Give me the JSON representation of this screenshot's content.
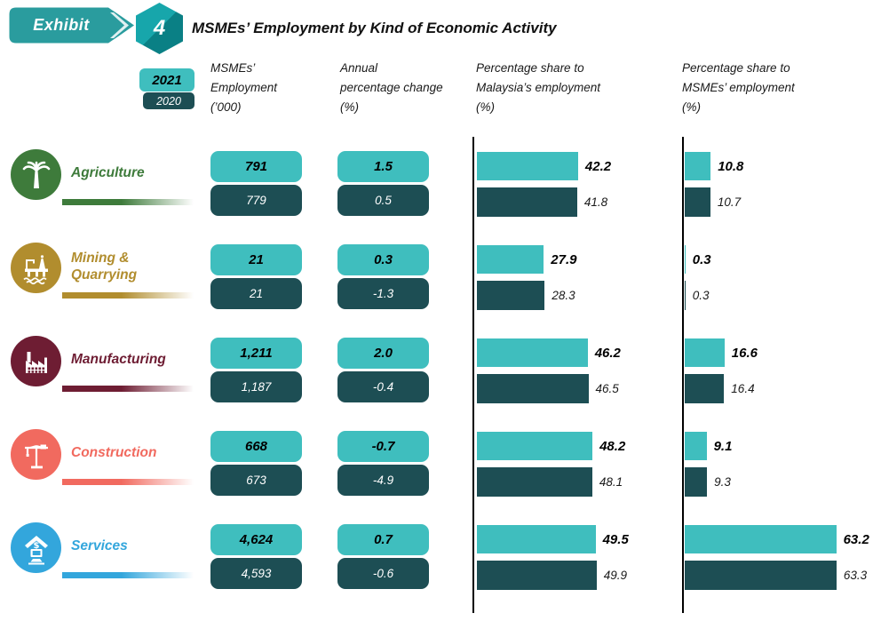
{
  "header": {
    "badge_label": "Exhibit",
    "exhibit_number": "4",
    "title": "MSMEs’ Employment by Kind of Economic Activity"
  },
  "legend": {
    "year_2021": "2021",
    "year_2020": "2020"
  },
  "columns": {
    "employment": "MSMEs’\nEmployment\n(’000)",
    "annual_change": "Annual\npercentage change\n(%)",
    "malaysia_share": "Percentage share to\nMalaysia’s employment\n(%)",
    "msme_share": "Percentage share to\nMSMEs’ employment\n(%)"
  },
  "colors": {
    "teal_2021": "#3FBEBE",
    "dark_2020": "#1D4E54",
    "badge": "#2A9C9E"
  },
  "rows": [
    {
      "name": "Agriculture",
      "icon": "palm-tree-icon",
      "color": "#3E7B3B",
      "employment": {
        "y2021": "791",
        "y2020": "779"
      },
      "change": {
        "y2021": "1.5",
        "y2020": "0.5"
      },
      "malaysia_share": {
        "y2021": "42.2",
        "y2020": "41.8"
      },
      "msme_share": {
        "y2021": "10.8",
        "y2020": "10.7"
      }
    },
    {
      "name": "Mining & Quarrying",
      "icon": "oil-rig-icon",
      "color": "#B18D2E",
      "employment": {
        "y2021": "21",
        "y2020": "21"
      },
      "change": {
        "y2021": "0.3",
        "y2020": "-1.3"
      },
      "malaysia_share": {
        "y2021": "27.9",
        "y2020": "28.3"
      },
      "msme_share": {
        "y2021": "0.3",
        "y2020": "0.3"
      }
    },
    {
      "name": "Manufacturing",
      "icon": "factory-icon",
      "color": "#6E1D33",
      "employment": {
        "y2021": "1,211",
        "y2020": "1,187"
      },
      "change": {
        "y2021": "2.0",
        "y2020": "-0.4"
      },
      "malaysia_share": {
        "y2021": "46.2",
        "y2020": "46.5"
      },
      "msme_share": {
        "y2021": "16.6",
        "y2020": "16.4"
      }
    },
    {
      "name": "Construction",
      "icon": "crane-icon",
      "color": "#F16A5F",
      "employment": {
        "y2021": "668",
        "y2020": "673"
      },
      "change": {
        "y2021": "-0.7",
        "y2020": "-4.9"
      },
      "malaysia_share": {
        "y2021": "48.2",
        "y2020": "48.1"
      },
      "msme_share": {
        "y2021": "9.1",
        "y2020": "9.3"
      }
    },
    {
      "name": "Services",
      "icon": "shop-icon",
      "color": "#33A6DC",
      "employment": {
        "y2021": "4,624",
        "y2020": "4,593"
      },
      "change": {
        "y2021": "0.7",
        "y2020": "-0.6"
      },
      "malaysia_share": {
        "y2021": "49.5",
        "y2020": "49.9"
      },
      "msme_share": {
        "y2021": "63.2",
        "y2020": "63.3"
      }
    }
  ],
  "chart_data": [
    {
      "type": "bar",
      "title": "MSMEs' Employment ('000)",
      "categories": [
        "Agriculture",
        "Mining & Quarrying",
        "Manufacturing",
        "Construction",
        "Services"
      ],
      "series": [
        {
          "name": "2021",
          "values": [
            791,
            21,
            1211,
            668,
            4624
          ]
        },
        {
          "name": "2020",
          "values": [
            779,
            21,
            1187,
            673,
            4593
          ]
        }
      ],
      "legend_position": "top-left",
      "display": "value boxes"
    },
    {
      "type": "bar",
      "title": "Annual percentage change (%)",
      "categories": [
        "Agriculture",
        "Mining & Quarrying",
        "Manufacturing",
        "Construction",
        "Services"
      ],
      "series": [
        {
          "name": "2021",
          "values": [
            1.5,
            0.3,
            2.0,
            -0.7,
            0.7
          ]
        },
        {
          "name": "2020",
          "values": [
            0.5,
            -1.3,
            -0.4,
            -4.9,
            -0.6
          ]
        }
      ],
      "legend_position": "top-left",
      "display": "value boxes"
    },
    {
      "type": "bar",
      "title": "Percentage share to Malaysia's employment (%)",
      "categories": [
        "Agriculture",
        "Mining & Quarrying",
        "Manufacturing",
        "Construction",
        "Services"
      ],
      "series": [
        {
          "name": "2021",
          "values": [
            42.2,
            27.9,
            46.2,
            48.2,
            49.5
          ]
        },
        {
          "name": "2020",
          "values": [
            41.8,
            28.3,
            46.5,
            48.1,
            49.9
          ]
        }
      ],
      "orientation": "horizontal",
      "xlim": [
        0,
        70
      ],
      "grid": false
    },
    {
      "type": "bar",
      "title": "Percentage share to MSMEs' employment (%)",
      "categories": [
        "Agriculture",
        "Mining & Quarrying",
        "Manufacturing",
        "Construction",
        "Services"
      ],
      "series": [
        {
          "name": "2021",
          "values": [
            10.8,
            0.3,
            16.6,
            9.1,
            63.2
          ]
        },
        {
          "name": "2020",
          "values": [
            10.7,
            0.3,
            16.4,
            9.3,
            63.3
          ]
        }
      ],
      "orientation": "horizontal",
      "xlim": [
        0,
        70
      ],
      "grid": false
    }
  ]
}
